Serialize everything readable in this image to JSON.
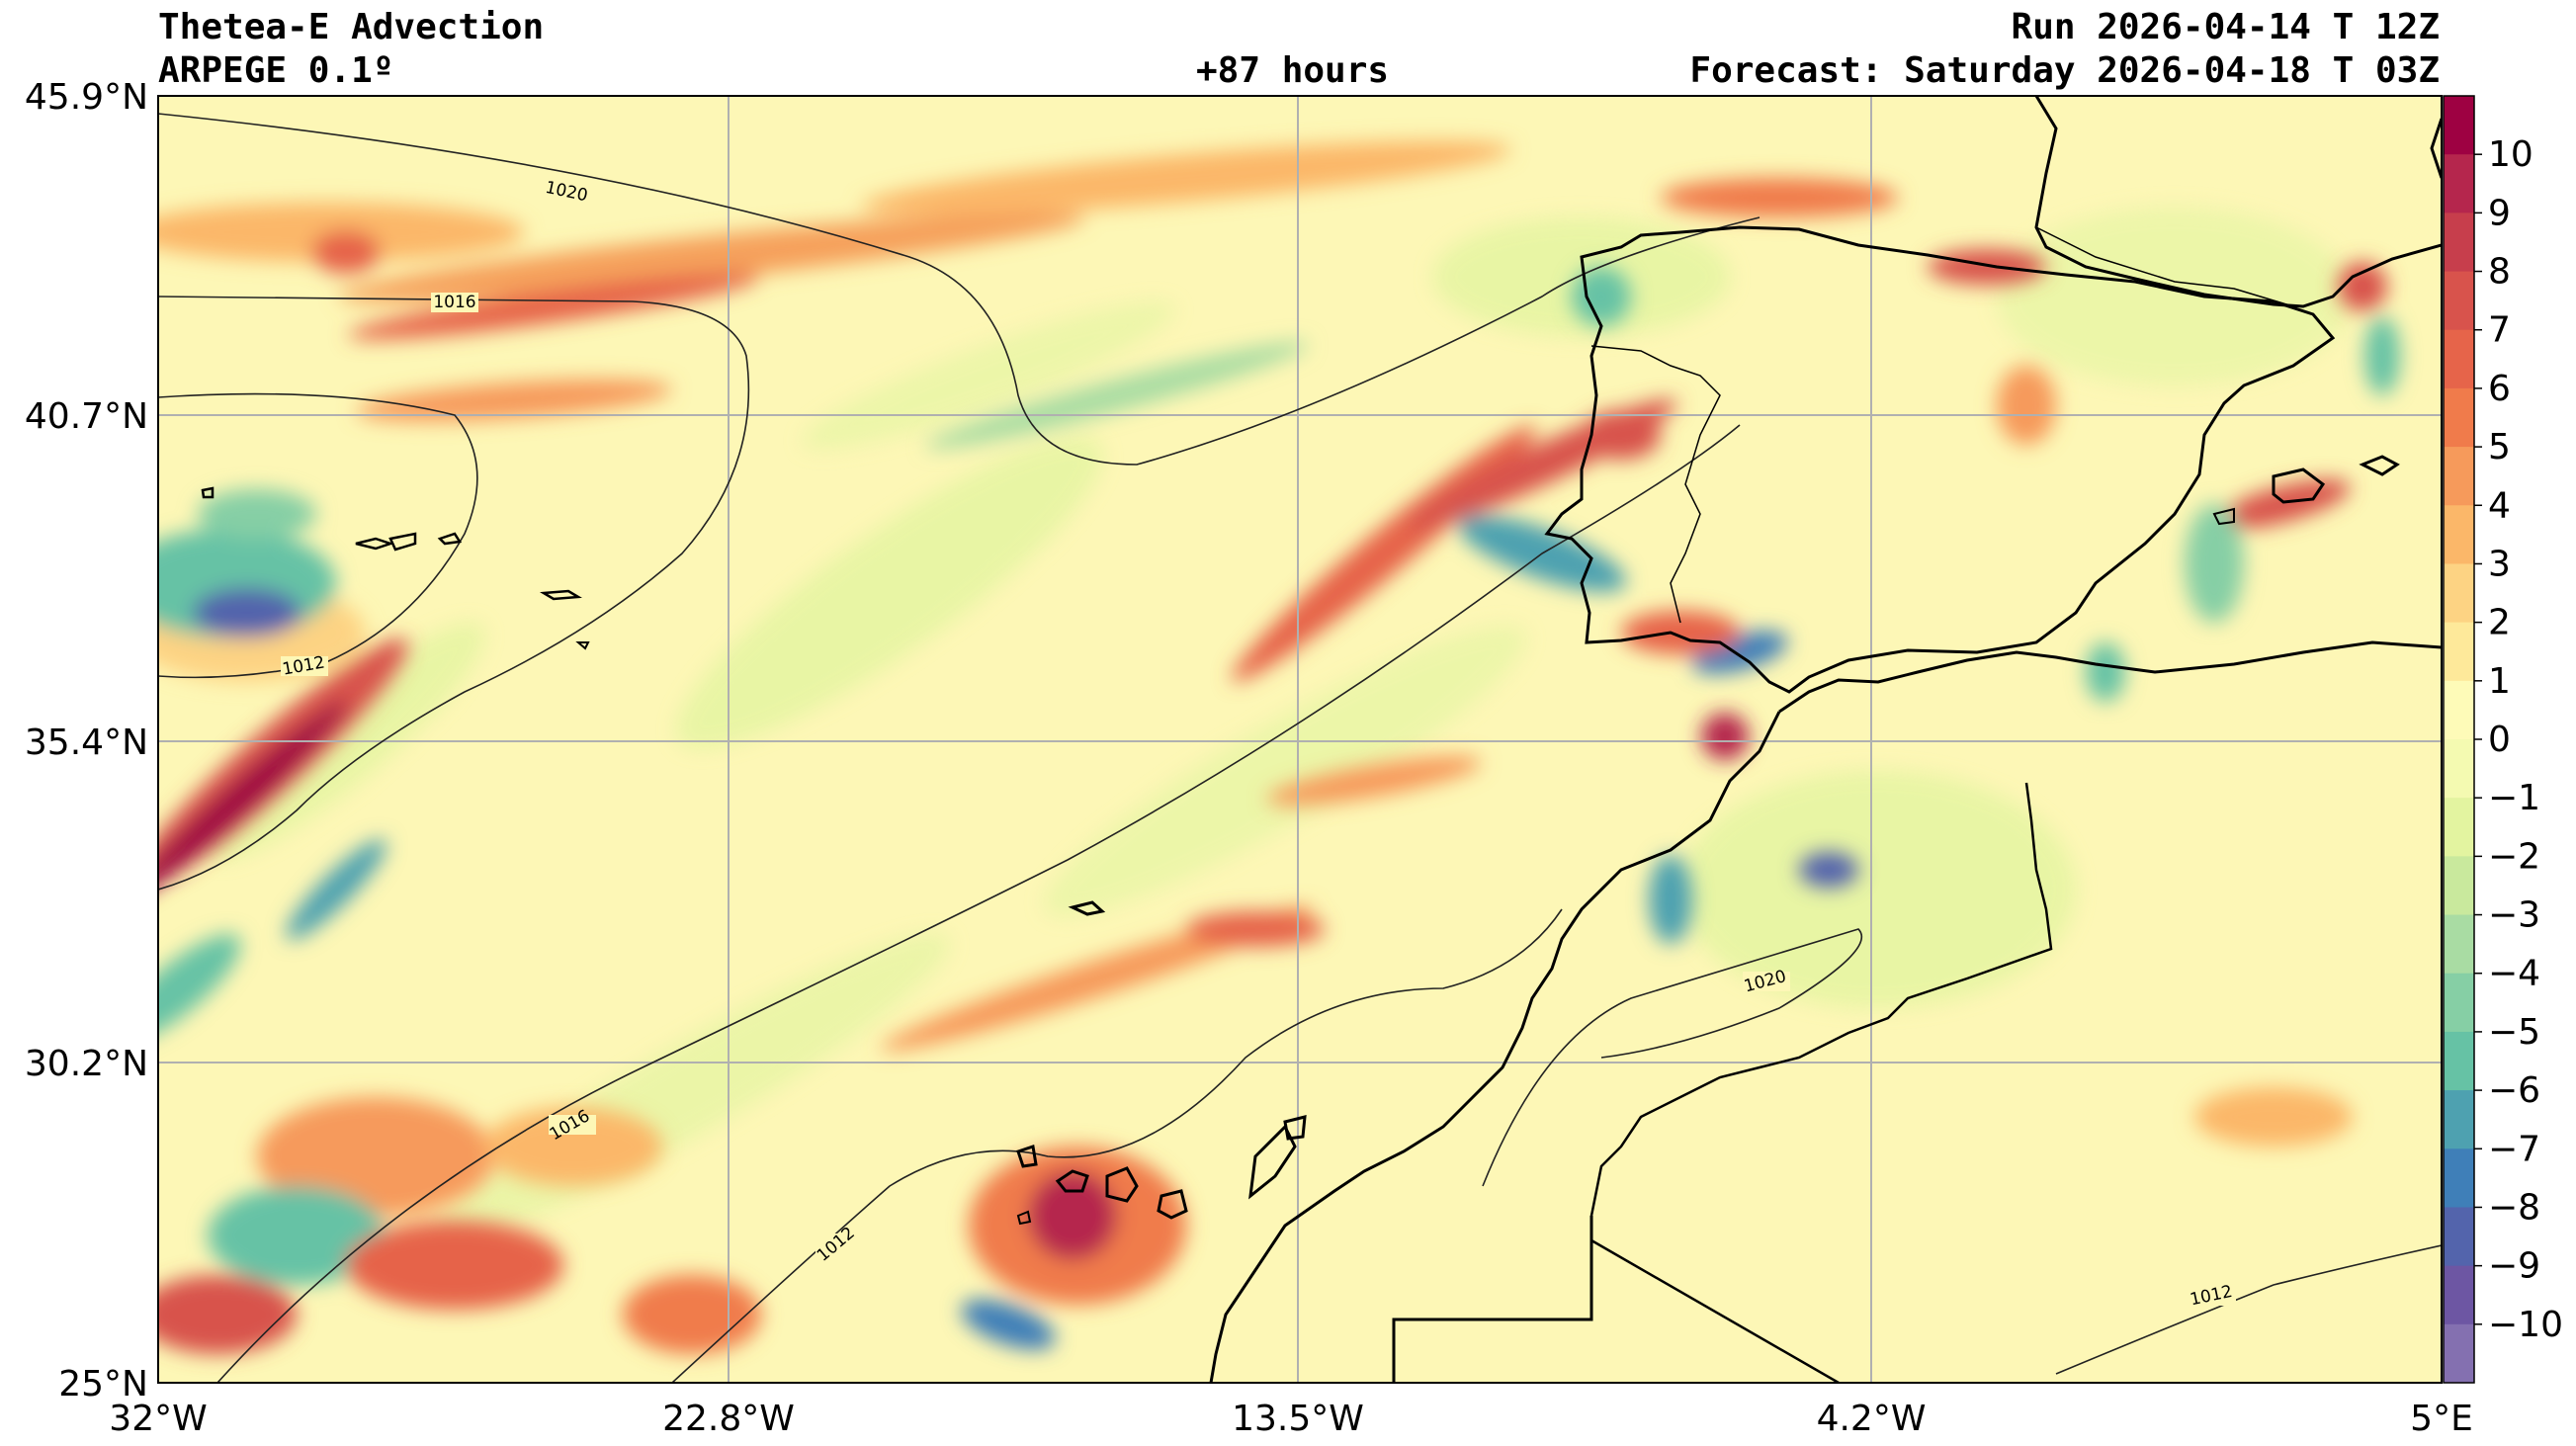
{
  "header": {
    "title": "Thetea-E Advection",
    "model": "ARPEGE 0.1º",
    "lead": "+87 hours",
    "run": "Run 2026-04-14 T 12Z",
    "forecast": "Forecast: Saturday 2026-04-18 T 03Z"
  },
  "axes": {
    "lat_labels": [
      "45.9°N",
      "40.7°N",
      "35.4°N",
      "30.2°N",
      "25°N"
    ],
    "lon_labels": [
      "32°W",
      "22.8°W",
      "13.5°W",
      "4.2°W",
      "5°E"
    ]
  },
  "colorbar": {
    "ticks": [
      "10",
      "9",
      "8",
      "7",
      "6",
      "5",
      "4",
      "3",
      "2",
      "1",
      "0",
      "−1",
      "−2",
      "−3",
      "−4",
      "−5",
      "−6",
      "−7",
      "−8",
      "−9",
      "−10"
    ],
    "colors": [
      "#9e0142",
      "#b5264d",
      "#c73e4c",
      "#d8534c",
      "#e6644a",
      "#f07b4b",
      "#f69a5b",
      "#fbb769",
      "#fdd383",
      "#fee99a",
      "#fefbb8",
      "#f4fab1",
      "#e3f4a0",
      "#c9e99d",
      "#a9dca3",
      "#86cfa5",
      "#66c2a5",
      "#4ea1b0",
      "#3f7fb8",
      "#5364ac",
      "#6d56a3",
      "#8470b0"
    ]
  },
  "isobars": [
    "1020",
    "1016",
    "1012",
    "1016",
    "1012",
    "1020",
    "1012"
  ],
  "colors": {
    "background_field": "#fdf6b4",
    "warm_advection": "#d53e4f",
    "cold_advection": "#3f7fb8"
  }
}
